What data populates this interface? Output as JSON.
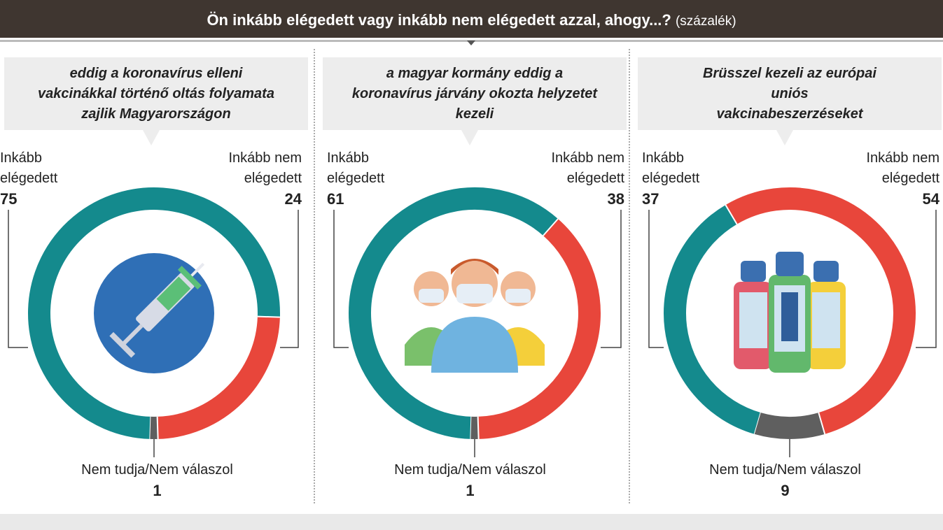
{
  "header": {
    "title": "Ön inkább elégedett vagy inkább nem elégedett azzal, ahogy...?",
    "unit": "(százalék)"
  },
  "colors": {
    "satisfied": "#148a8d",
    "not_satisfied": "#e8463b",
    "dont_know": "#5f5f5f"
  },
  "chart_data": [
    {
      "type": "pie",
      "title": "eddig a koronavírus elleni vakcinákkal történő oltás folyamata zajlik Magyarországon",
      "icon": "syringe-icon",
      "categories": [
        "Inkább elégedett",
        "Inkább nem elégedett",
        "Nem tudja/Nem válaszol"
      ],
      "values": [
        75,
        24,
        1
      ]
    },
    {
      "type": "pie",
      "title": "a magyar kormány eddig a koronavírus járvány okozta helyzetet kezeli",
      "icon": "masked-people-icon",
      "categories": [
        "Inkább elégedett",
        "Inkább nem elégedett",
        "Nem tudja/Nem válaszol"
      ],
      "values": [
        61,
        38,
        1
      ]
    },
    {
      "type": "pie",
      "title": "Brüsszel kezeli az európai uniós vakcinabeszerzéseket",
      "icon": "vaccine-vials-icon",
      "categories": [
        "Inkább elégedett",
        "Inkább nem elégedett",
        "Nem tudja/Nem válaszol"
      ],
      "values": [
        37,
        54,
        9
      ]
    }
  ]
}
